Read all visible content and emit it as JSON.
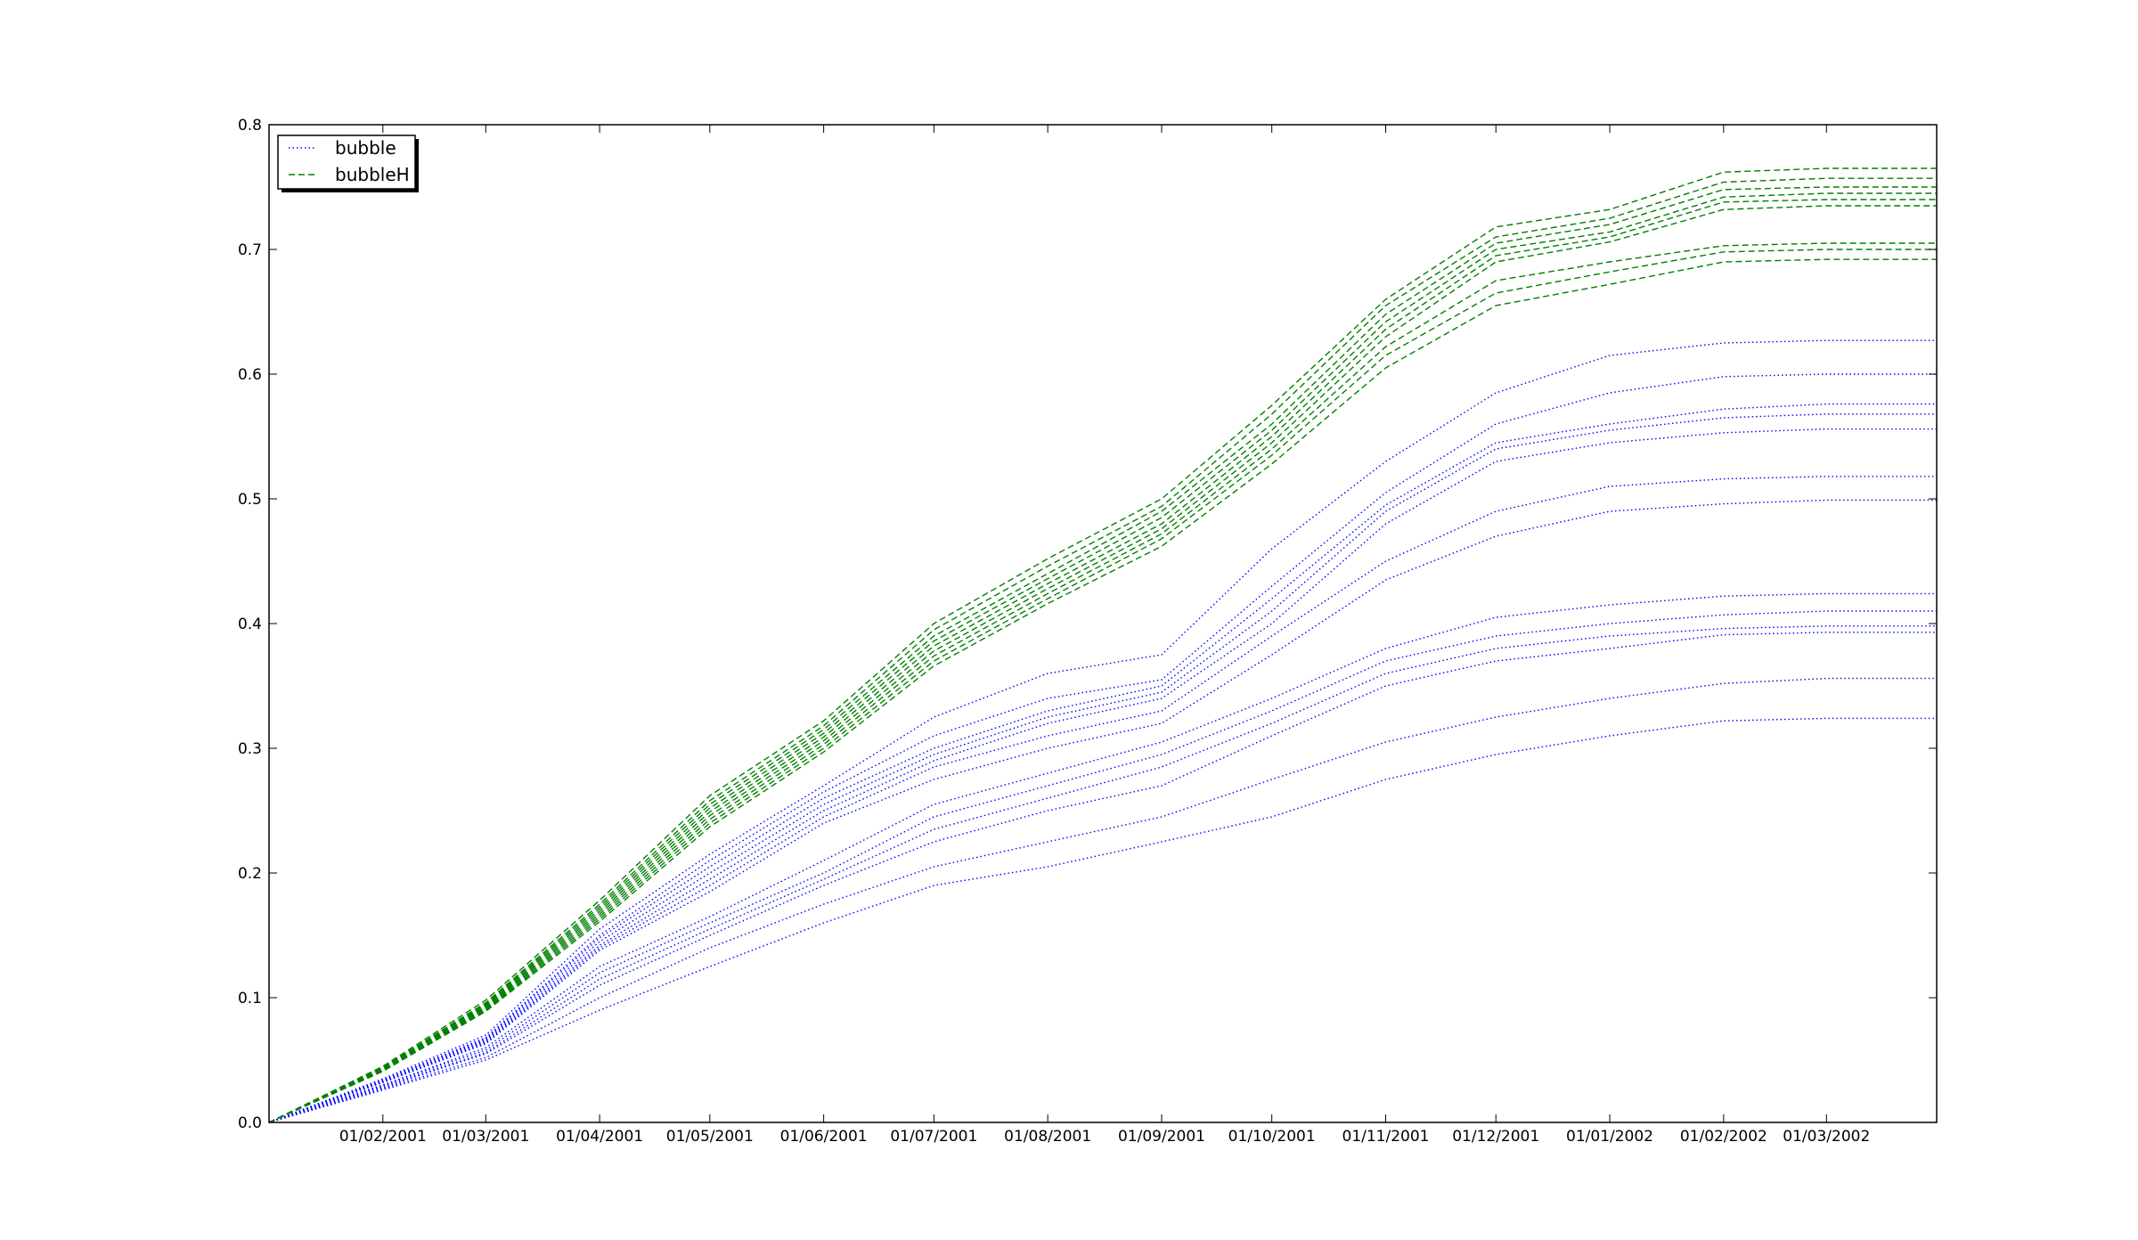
{
  "chart_data": {
    "type": "line",
    "title": "",
    "xlabel": "",
    "ylabel": "",
    "x_axis_type": "date",
    "xlim": [
      "2001-01-01",
      "2002-03-31"
    ],
    "ylim": [
      0,
      0.8
    ],
    "x_tick_dates": [
      "2001-02-01",
      "2001-03-01",
      "2001-04-01",
      "2001-05-01",
      "2001-06-01",
      "2001-07-01",
      "2001-08-01",
      "2001-09-01",
      "2001-10-01",
      "2001-11-01",
      "2001-12-01",
      "2002-01-01",
      "2002-02-01",
      "2002-03-01"
    ],
    "x_tick_labels": [
      "01/02/2001",
      "01/03/2001",
      "01/04/2001",
      "01/05/2001",
      "01/06/2001",
      "01/07/2001",
      "01/08/2001",
      "01/09/2001",
      "01/10/2001",
      "01/11/2001",
      "01/12/2001",
      "01/01/2002",
      "01/02/2002",
      "01/03/2002"
    ],
    "y_ticks": [
      0.0,
      0.1,
      0.2,
      0.3,
      0.4,
      0.5,
      0.6,
      0.7,
      0.8
    ],
    "y_tick_labels": [
      "0.0",
      "0.1",
      "0.2",
      "0.3",
      "0.4",
      "0.5",
      "0.6",
      "0.7",
      "0.8"
    ],
    "grid": false,
    "legend_position": "top-left",
    "legend": [
      {
        "label": "bubble",
        "style": "dotted",
        "color": "#0000ff"
      },
      {
        "label": "bubbleH",
        "style": "dashed",
        "color": "#008000"
      }
    ],
    "series_dates": [
      "2001-01-01",
      "2001-02-01",
      "2001-03-01",
      "2001-04-01",
      "2001-05-01",
      "2001-06-01",
      "2001-07-01",
      "2001-08-01",
      "2001-09-01",
      "2001-10-01",
      "2001-11-01",
      "2001-12-01",
      "2002-01-01",
      "2002-02-01",
      "2002-03-01",
      "2002-03-31"
    ],
    "series": [
      {
        "group": "bubble",
        "values": [
          0.0,
          0.035,
          0.07,
          0.155,
          0.215,
          0.27,
          0.325,
          0.36,
          0.375,
          0.46,
          0.53,
          0.585,
          0.615,
          0.625,
          0.627,
          0.627
        ]
      },
      {
        "group": "bubble",
        "values": [
          0.0,
          0.034,
          0.068,
          0.15,
          0.21,
          0.265,
          0.31,
          0.34,
          0.355,
          0.43,
          0.505,
          0.56,
          0.585,
          0.598,
          0.6,
          0.6
        ]
      },
      {
        "group": "bubble",
        "values": [
          0.0,
          0.034,
          0.067,
          0.148,
          0.205,
          0.26,
          0.3,
          0.33,
          0.35,
          0.42,
          0.495,
          0.545,
          0.56,
          0.572,
          0.576,
          0.576
        ]
      },
      {
        "group": "bubble",
        "values": [
          0.0,
          0.033,
          0.066,
          0.145,
          0.2,
          0.255,
          0.295,
          0.325,
          0.345,
          0.41,
          0.49,
          0.54,
          0.555,
          0.565,
          0.568,
          0.568
        ]
      },
      {
        "group": "bubble",
        "values": [
          0.0,
          0.033,
          0.065,
          0.142,
          0.195,
          0.25,
          0.29,
          0.32,
          0.34,
          0.4,
          0.48,
          0.53,
          0.545,
          0.553,
          0.556,
          0.556
        ]
      },
      {
        "group": "bubble",
        "values": [
          0.0,
          0.032,
          0.064,
          0.14,
          0.19,
          0.245,
          0.285,
          0.31,
          0.33,
          0.39,
          0.45,
          0.49,
          0.51,
          0.516,
          0.518,
          0.518
        ]
      },
      {
        "group": "bubble",
        "values": [
          0.0,
          0.032,
          0.063,
          0.138,
          0.185,
          0.24,
          0.275,
          0.3,
          0.32,
          0.375,
          0.435,
          0.47,
          0.49,
          0.496,
          0.499,
          0.499
        ]
      },
      {
        "group": "bubble",
        "values": [
          0.0,
          0.03,
          0.06,
          0.125,
          0.165,
          0.21,
          0.255,
          0.28,
          0.305,
          0.34,
          0.38,
          0.405,
          0.415,
          0.422,
          0.424,
          0.424
        ]
      },
      {
        "group": "bubble",
        "values": [
          0.0,
          0.03,
          0.058,
          0.12,
          0.16,
          0.2,
          0.245,
          0.27,
          0.295,
          0.33,
          0.37,
          0.39,
          0.4,
          0.407,
          0.41,
          0.41
        ]
      },
      {
        "group": "bubble",
        "values": [
          0.0,
          0.029,
          0.056,
          0.115,
          0.155,
          0.195,
          0.235,
          0.26,
          0.285,
          0.32,
          0.36,
          0.38,
          0.39,
          0.396,
          0.398,
          0.398
        ]
      },
      {
        "group": "bubble",
        "values": [
          0.0,
          0.028,
          0.055,
          0.11,
          0.15,
          0.19,
          0.225,
          0.25,
          0.27,
          0.31,
          0.35,
          0.37,
          0.38,
          0.391,
          0.393,
          0.393
        ]
      },
      {
        "group": "bubble",
        "values": [
          0.0,
          0.027,
          0.052,
          0.1,
          0.14,
          0.175,
          0.205,
          0.225,
          0.245,
          0.275,
          0.305,
          0.325,
          0.34,
          0.352,
          0.356,
          0.356
        ]
      },
      {
        "group": "bubble",
        "values": [
          0.0,
          0.026,
          0.05,
          0.09,
          0.125,
          0.16,
          0.19,
          0.205,
          0.225,
          0.245,
          0.275,
          0.295,
          0.31,
          0.322,
          0.324,
          0.324
        ]
      },
      {
        "group": "bubbleH",
        "values": [
          0.0,
          0.045,
          0.098,
          0.178,
          0.262,
          0.322,
          0.4,
          0.452,
          0.5,
          0.575,
          0.66,
          0.718,
          0.732,
          0.762,
          0.765,
          0.765
        ]
      },
      {
        "group": "bubbleH",
        "values": [
          0.0,
          0.044,
          0.096,
          0.175,
          0.258,
          0.318,
          0.395,
          0.446,
          0.494,
          0.568,
          0.655,
          0.71,
          0.725,
          0.754,
          0.757,
          0.757
        ]
      },
      {
        "group": "bubbleH",
        "values": [
          0.0,
          0.044,
          0.095,
          0.173,
          0.255,
          0.315,
          0.39,
          0.44,
          0.49,
          0.56,
          0.648,
          0.705,
          0.72,
          0.748,
          0.75,
          0.75
        ]
      },
      {
        "group": "bubbleH",
        "values": [
          0.0,
          0.043,
          0.094,
          0.171,
          0.252,
          0.312,
          0.386,
          0.436,
          0.485,
          0.555,
          0.642,
          0.7,
          0.714,
          0.742,
          0.745,
          0.745
        ]
      },
      {
        "group": "bubbleH",
        "values": [
          0.0,
          0.043,
          0.093,
          0.169,
          0.249,
          0.309,
          0.382,
          0.432,
          0.48,
          0.55,
          0.636,
          0.695,
          0.71,
          0.738,
          0.74,
          0.74
        ]
      },
      {
        "group": "bubbleH",
        "values": [
          0.0,
          0.042,
          0.092,
          0.167,
          0.246,
          0.306,
          0.378,
          0.428,
          0.476,
          0.545,
          0.63,
          0.69,
          0.706,
          0.732,
          0.735,
          0.735
        ]
      },
      {
        "group": "bubbleH",
        "values": [
          0.0,
          0.042,
          0.091,
          0.165,
          0.243,
          0.303,
          0.374,
          0.424,
          0.472,
          0.54,
          0.622,
          0.675,
          0.69,
          0.703,
          0.705,
          0.705
        ]
      },
      {
        "group": "bubbleH",
        "values": [
          0.0,
          0.041,
          0.09,
          0.163,
          0.24,
          0.3,
          0.37,
          0.42,
          0.468,
          0.535,
          0.615,
          0.665,
          0.682,
          0.698,
          0.7,
          0.7
        ]
      },
      {
        "group": "bubbleH",
        "values": [
          0.0,
          0.041,
          0.089,
          0.161,
          0.237,
          0.297,
          0.366,
          0.416,
          0.462,
          0.528,
          0.605,
          0.655,
          0.672,
          0.69,
          0.692,
          0.692
        ]
      }
    ]
  }
}
